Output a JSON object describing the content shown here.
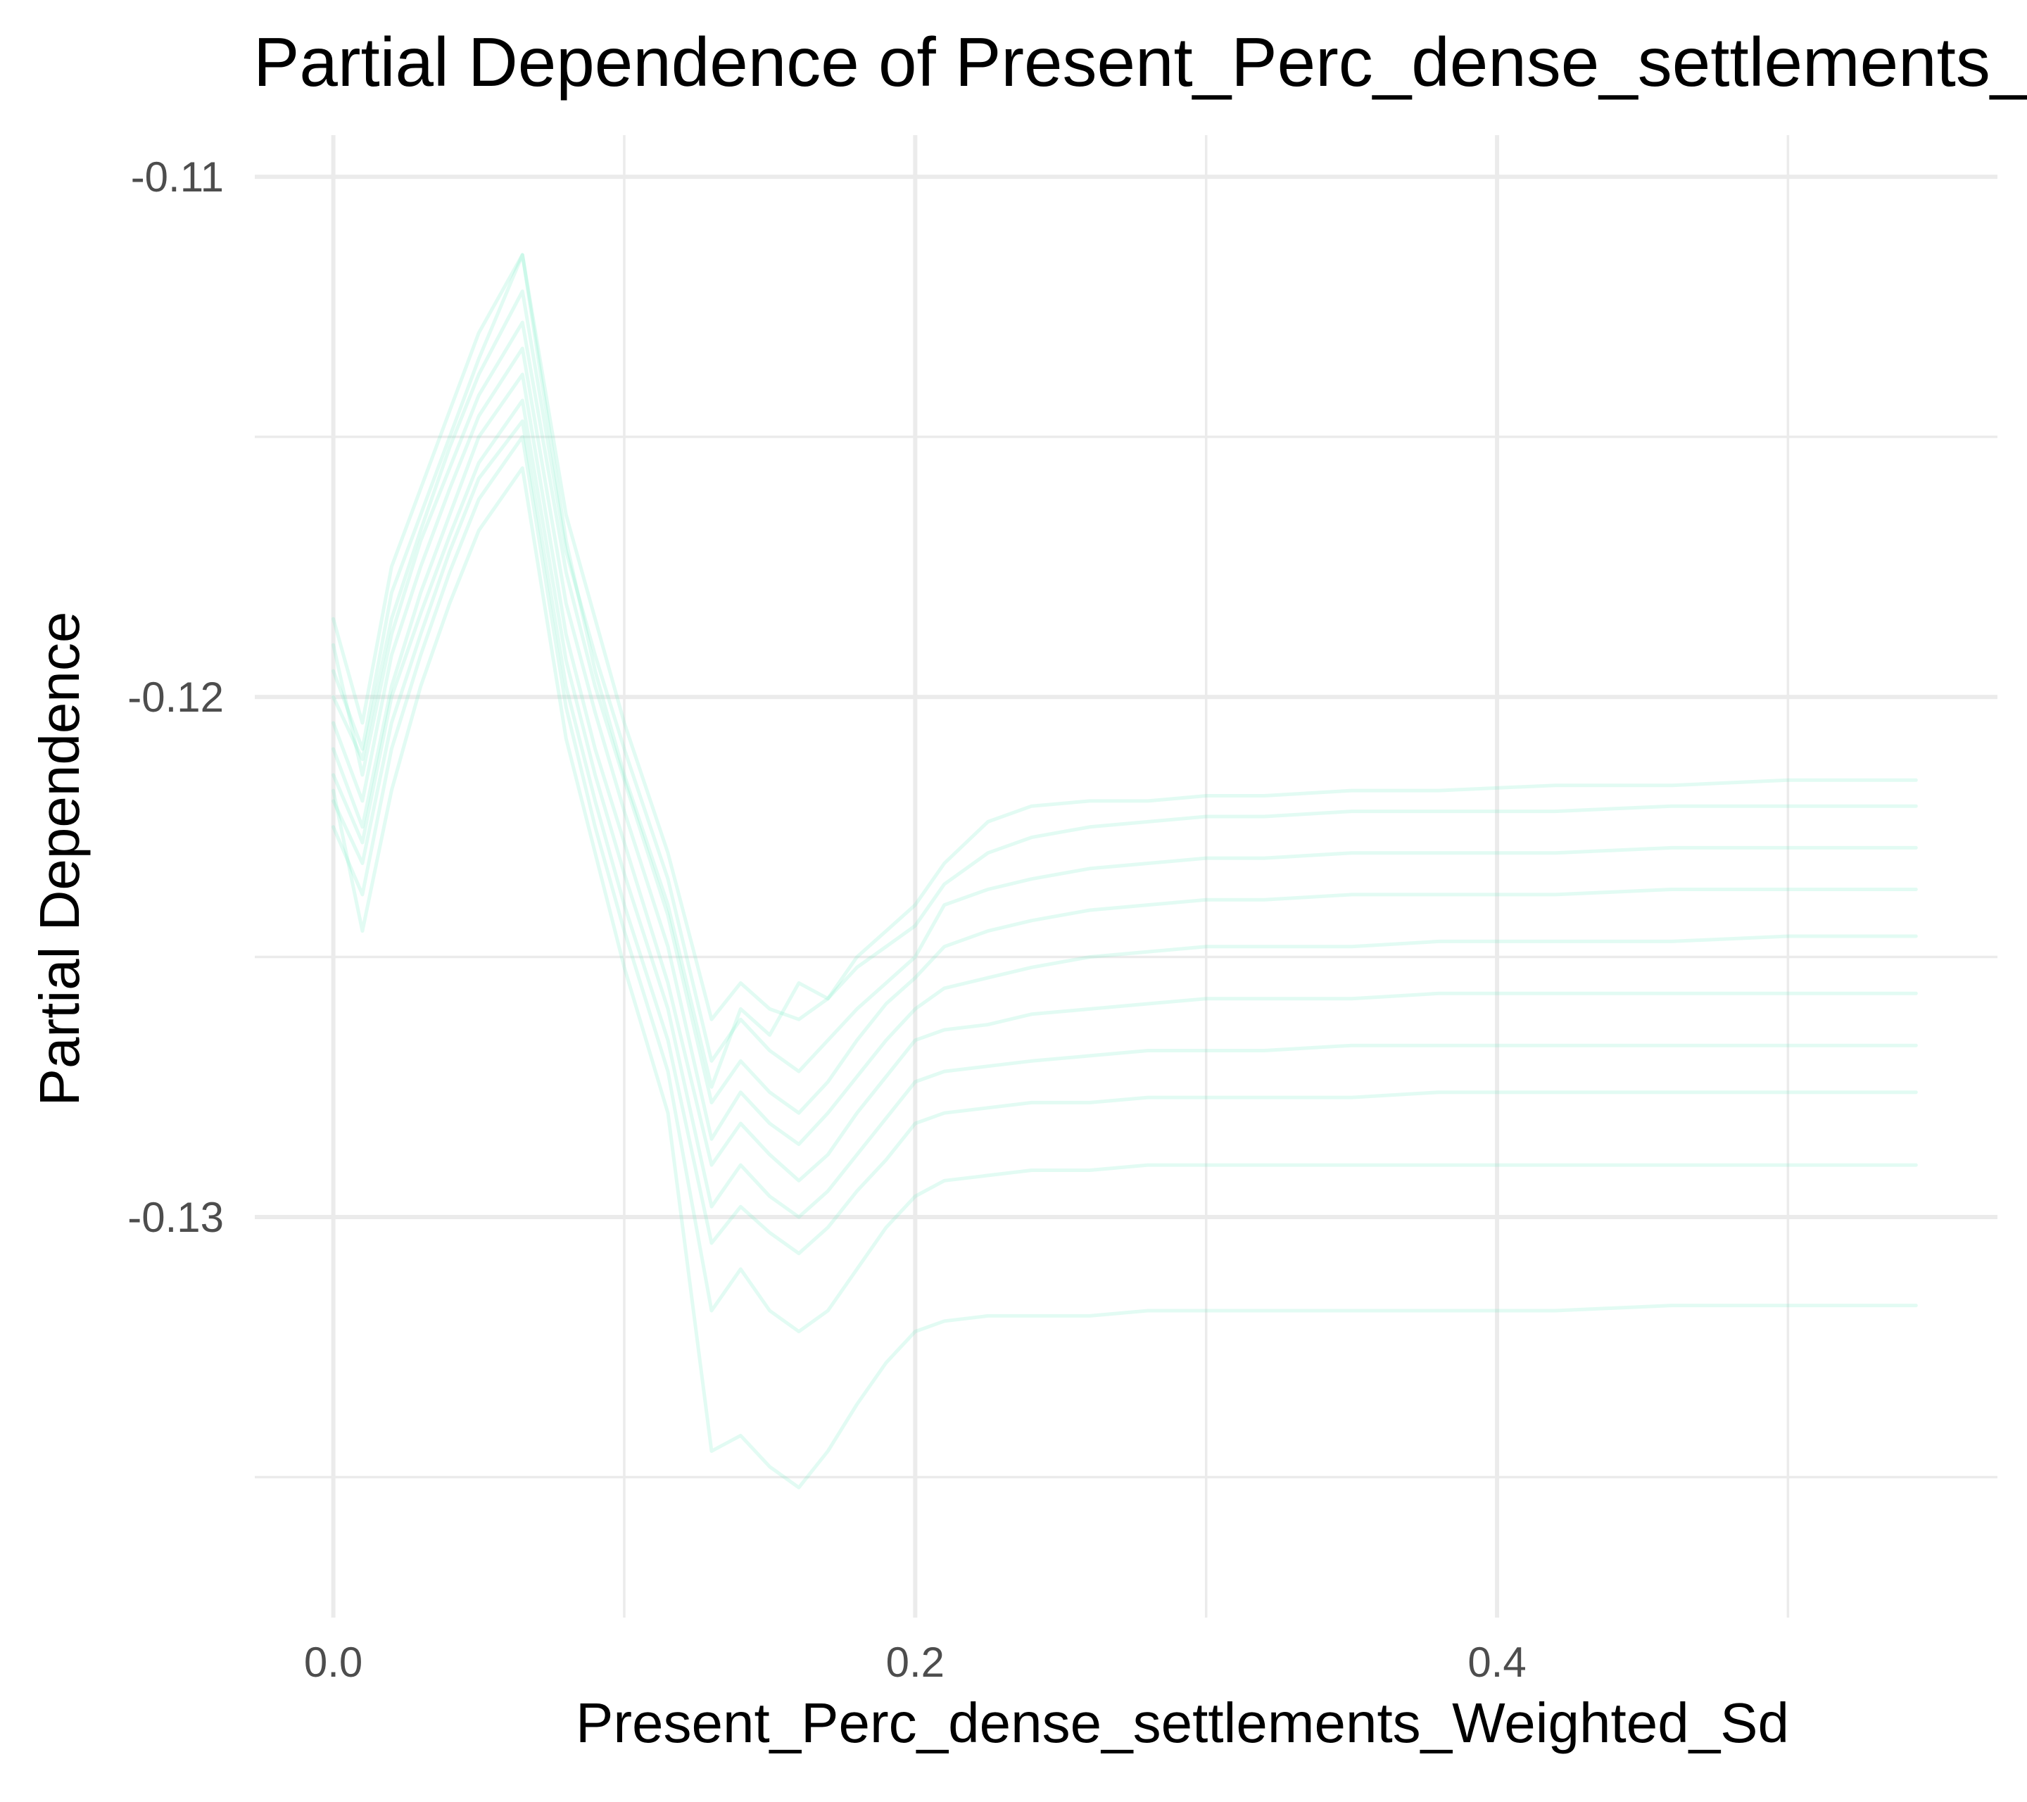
{
  "chart_data": {
    "type": "line",
    "title": "Partial Dependence of Present_Perc_dense_settlements_Weighted_Sd",
    "xlabel": "Present_Perc_dense_settlements_Weighted_Sd",
    "ylabel": "Partial Dependence",
    "xlim": [
      -0.027,
      0.572
    ],
    "ylim": [
      -0.1377,
      -0.1092
    ],
    "x_ticks": [
      {
        "value": 0.0,
        "label": "0.0"
      },
      {
        "value": 0.2,
        "label": "0.2"
      },
      {
        "value": 0.4,
        "label": "0.4"
      }
    ],
    "y_ticks": [
      {
        "value": -0.11,
        "label": "-0.11"
      },
      {
        "value": -0.12,
        "label": "-0.12"
      },
      {
        "value": -0.13,
        "label": "-0.13"
      }
    ],
    "x_minor_ticks": [
      0.1,
      0.3,
      0.5
    ],
    "y_minor_ticks": [
      -0.115,
      -0.125,
      -0.135
    ],
    "grid": true,
    "legend": "none",
    "line_color": "#7deec9",
    "line_opacity": 0.22,
    "x": [
      0.0,
      0.01,
      0.02,
      0.03,
      0.04,
      0.05,
      0.065,
      0.08,
      0.09,
      0.1,
      0.115,
      0.13,
      0.14,
      0.15,
      0.16,
      0.17,
      0.18,
      0.19,
      0.2,
      0.21,
      0.225,
      0.24,
      0.26,
      0.28,
      0.3,
      0.32,
      0.35,
      0.38,
      0.42,
      0.46,
      0.5,
      0.544
    ],
    "series_note_count": 10,
    "series": [
      {
        "values": [
          -0.1195,
          -0.121,
          -0.118,
          -0.1165,
          -0.115,
          -0.1135,
          -0.1115,
          -0.117,
          -0.1195,
          -0.1215,
          -0.124,
          -0.1275,
          -0.126,
          -0.1265,
          -0.1255,
          -0.1258,
          -0.125,
          -0.1245,
          -0.124,
          -0.1232,
          -0.1224,
          -0.1221,
          -0.122,
          -0.122,
          -0.1219,
          -0.1219,
          -0.1218,
          -0.1218,
          -0.1217,
          -0.1217,
          -0.1216,
          -0.1216
        ]
      },
      {
        "values": [
          -0.1185,
          -0.1205,
          -0.1175,
          -0.116,
          -0.1145,
          -0.113,
          -0.1115,
          -0.1165,
          -0.1185,
          -0.1205,
          -0.123,
          -0.1262,
          -0.1255,
          -0.126,
          -0.1262,
          -0.1258,
          -0.1252,
          -0.1248,
          -0.1244,
          -0.1236,
          -0.123,
          -0.1227,
          -0.1225,
          -0.1224,
          -0.1223,
          -0.1223,
          -0.1222,
          -0.1222,
          -0.1222,
          -0.1221,
          -0.1221,
          -0.1221
        ]
      },
      {
        "values": [
          -0.12,
          -0.1212,
          -0.1185,
          -0.1168,
          -0.1152,
          -0.1138,
          -0.1122,
          -0.1172,
          -0.1192,
          -0.121,
          -0.1235,
          -0.127,
          -0.1262,
          -0.1268,
          -0.1272,
          -0.1266,
          -0.126,
          -0.1255,
          -0.125,
          -0.124,
          -0.1237,
          -0.1235,
          -0.1233,
          -0.1232,
          -0.1231,
          -0.1231,
          -0.123,
          -0.123,
          -0.123,
          -0.1229,
          -0.1229,
          -0.1229
        ]
      },
      {
        "values": [
          -0.119,
          -0.1215,
          -0.1188,
          -0.117,
          -0.1156,
          -0.1142,
          -0.1128,
          -0.1176,
          -0.1198,
          -0.1216,
          -0.1242,
          -0.1278,
          -0.127,
          -0.1276,
          -0.128,
          -0.1274,
          -0.1266,
          -0.1259,
          -0.1254,
          -0.1248,
          -0.1245,
          -0.1243,
          -0.1241,
          -0.124,
          -0.1239,
          -0.1239,
          -0.1238,
          -0.1238,
          -0.1238,
          -0.1237,
          -0.1237,
          -0.1237
        ]
      },
      {
        "values": [
          -0.1205,
          -0.122,
          -0.1192,
          -0.1175,
          -0.116,
          -0.1146,
          -0.1133,
          -0.1182,
          -0.1203,
          -0.1222,
          -0.1248,
          -0.1285,
          -0.1276,
          -0.1282,
          -0.1286,
          -0.128,
          -0.1273,
          -0.1266,
          -0.126,
          -0.1256,
          -0.1254,
          -0.1252,
          -0.125,
          -0.1249,
          -0.1248,
          -0.1248,
          -0.1248,
          -0.1247,
          -0.1247,
          -0.1247,
          -0.1246,
          -0.1246
        ]
      },
      {
        "values": [
          -0.121,
          -0.1225,
          -0.1198,
          -0.118,
          -0.1165,
          -0.115,
          -0.1138,
          -0.1188,
          -0.121,
          -0.1228,
          -0.1255,
          -0.129,
          -0.1282,
          -0.1288,
          -0.1293,
          -0.1288,
          -0.128,
          -0.1273,
          -0.1266,
          -0.1264,
          -0.1263,
          -0.1261,
          -0.126,
          -0.1259,
          -0.1258,
          -0.1258,
          -0.1258,
          -0.1257,
          -0.1257,
          -0.1257,
          -0.1257,
          -0.1257
        ]
      },
      {
        "values": [
          -0.1215,
          -0.1228,
          -0.12,
          -0.1184,
          -0.1169,
          -0.1155,
          -0.1143,
          -0.1193,
          -0.1215,
          -0.1234,
          -0.126,
          -0.1298,
          -0.129,
          -0.1296,
          -0.13,
          -0.1295,
          -0.1288,
          -0.1281,
          -0.1274,
          -0.1272,
          -0.1271,
          -0.127,
          -0.1269,
          -0.1268,
          -0.1268,
          -0.1268,
          -0.1267,
          -0.1267,
          -0.1267,
          -0.1267,
          -0.1267,
          -0.1267
        ]
      },
      {
        "values": [
          -0.122,
          -0.1232,
          -0.1205,
          -0.1188,
          -0.1172,
          -0.1158,
          -0.1147,
          -0.1198,
          -0.122,
          -0.124,
          -0.1266,
          -0.1305,
          -0.1298,
          -0.1303,
          -0.1307,
          -0.1302,
          -0.1295,
          -0.1289,
          -0.1282,
          -0.128,
          -0.1279,
          -0.1278,
          -0.1278,
          -0.1277,
          -0.1277,
          -0.1277,
          -0.1277,
          -0.1276,
          -0.1276,
          -0.1276,
          -0.1276,
          -0.1276
        ]
      },
      {
        "values": [
          -0.1225,
          -0.1238,
          -0.121,
          -0.1192,
          -0.1176,
          -0.1162,
          -0.115,
          -0.1202,
          -0.1225,
          -0.1245,
          -0.1272,
          -0.1318,
          -0.131,
          -0.1318,
          -0.1322,
          -0.1318,
          -0.131,
          -0.1302,
          -0.1296,
          -0.1293,
          -0.1292,
          -0.1291,
          -0.1291,
          -0.129,
          -0.129,
          -0.129,
          -0.129,
          -0.129,
          -0.129,
          -0.129,
          -0.129,
          -0.129
        ]
      },
      {
        "values": [
          -0.1218,
          -0.1245,
          -0.1218,
          -0.1198,
          -0.1182,
          -0.1168,
          -0.1156,
          -0.1208,
          -0.123,
          -0.1252,
          -0.128,
          -0.1345,
          -0.1342,
          -0.1348,
          -0.1352,
          -0.1345,
          -0.1336,
          -0.1328,
          -0.1322,
          -0.132,
          -0.1319,
          -0.1319,
          -0.1319,
          -0.1318,
          -0.1318,
          -0.1318,
          -0.1318,
          -0.1318,
          -0.1318,
          -0.1317,
          -0.1317,
          -0.1317
        ]
      }
    ]
  }
}
